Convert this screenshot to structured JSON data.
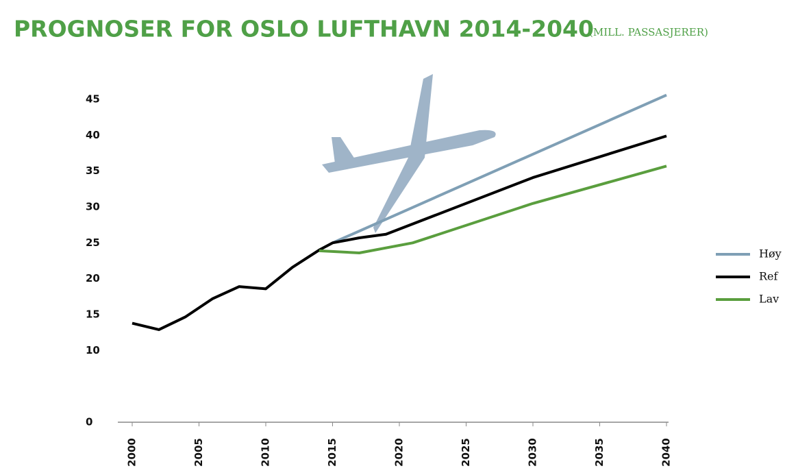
{
  "chart_data": {
    "type": "line",
    "title": "PROGNOSER FOR OSLO LUFTHAVN 2014-2040",
    "subtitle": "(MILL. PASSASJERER)",
    "xlim": [
      2000,
      2040
    ],
    "xticks": [
      2000,
      2005,
      2010,
      2015,
      2020,
      2025,
      2030,
      2035,
      2040
    ],
    "ylim": [
      0,
      45
    ],
    "yticks": [
      0,
      10,
      15,
      20,
      25,
      30,
      35,
      40,
      45
    ],
    "legend": "right",
    "series": [
      {
        "name": "Høy",
        "color": "#7f9fb5",
        "x": [
          2015,
          2040
        ],
        "values": [
          25.0,
          45.6
        ]
      },
      {
        "name": "Ref",
        "color": "#000000",
        "x": [
          2000,
          2002,
          2004,
          2006,
          2008,
          2010,
          2012,
          2014,
          2015,
          2017,
          2019,
          2030,
          2040
        ],
        "values": [
          13.8,
          12.9,
          14.7,
          17.2,
          18.9,
          18.6,
          21.6,
          24.0,
          25.0,
          25.7,
          26.2,
          34.1,
          39.9
        ]
      },
      {
        "name": "Lav",
        "color": "#5a9e3e",
        "x": [
          2014,
          2017,
          2021,
          2030,
          2040
        ],
        "values": [
          23.9,
          23.6,
          25.0,
          30.5,
          35.7
        ]
      }
    ]
  }
}
